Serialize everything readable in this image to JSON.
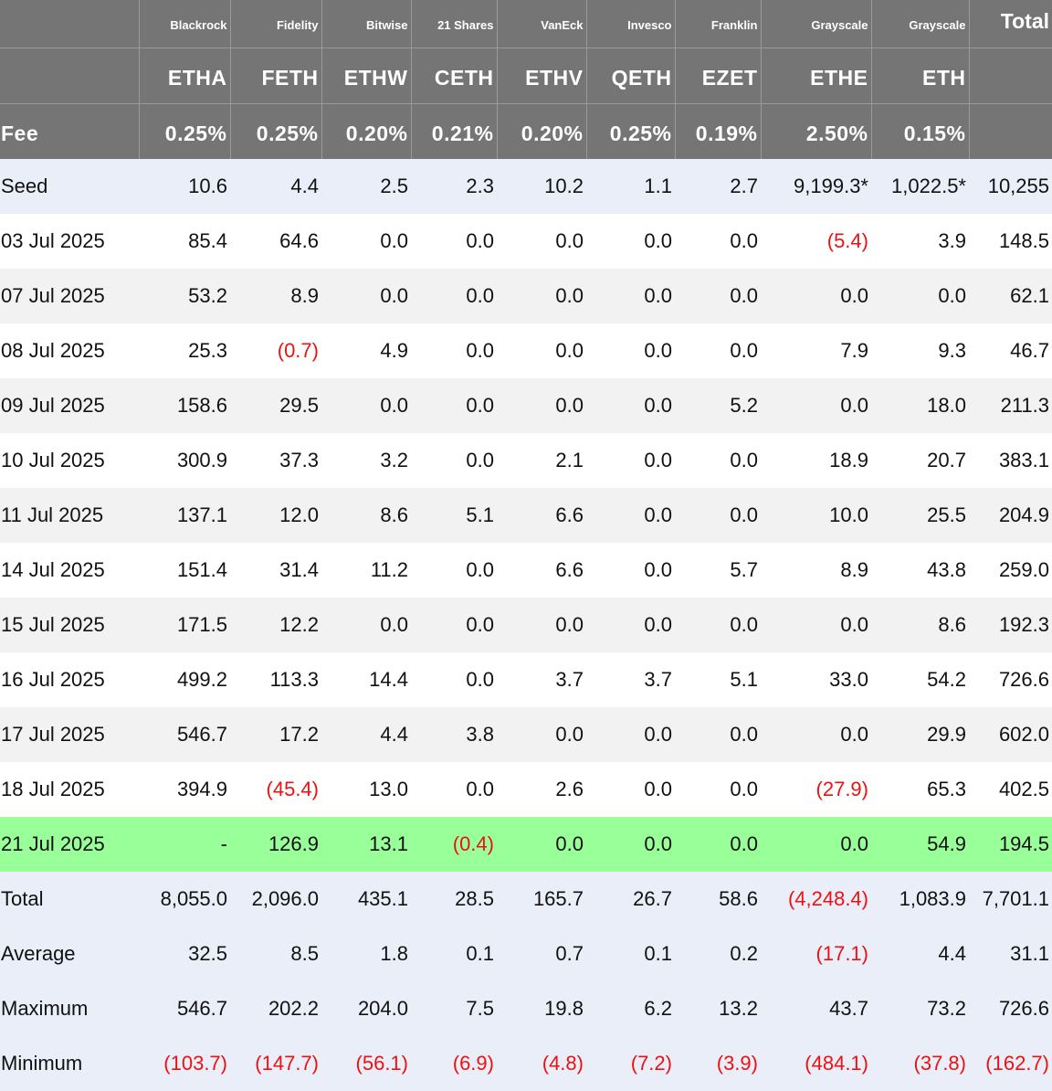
{
  "columns": [
    {
      "issuer": "Blackrock",
      "ticker": "ETHA",
      "fee": "0.25%"
    },
    {
      "issuer": "Fidelity",
      "ticker": "FETH",
      "fee": "0.25%"
    },
    {
      "issuer": "Bitwise",
      "ticker": "ETHW",
      "fee": "0.20%"
    },
    {
      "issuer": "21 Shares",
      "ticker": "CETH",
      "fee": "0.21%"
    },
    {
      "issuer": "VanEck",
      "ticker": "ETHV",
      "fee": "0.20%"
    },
    {
      "issuer": "Invesco",
      "ticker": "QETH",
      "fee": "0.25%"
    },
    {
      "issuer": "Franklin",
      "ticker": "EZET",
      "fee": "0.19%"
    },
    {
      "issuer": "Grayscale",
      "ticker": "ETHE",
      "fee": "2.50%"
    },
    {
      "issuer": "Grayscale",
      "ticker": "ETH",
      "fee": "0.15%"
    }
  ],
  "total_header": "Total",
  "fee_label": "Fee",
  "seed": {
    "label": "Seed",
    "cells": [
      "10.6",
      "4.4",
      "2.5",
      "2.3",
      "10.2",
      "1.1",
      "2.7",
      "9,199.3*",
      "1,022.5*",
      "10,255"
    ]
  },
  "rows": [
    {
      "date": "03 Jul 2025",
      "cells": [
        "85.4",
        "64.6",
        "0.0",
        "0.0",
        "0.0",
        "0.0",
        "0.0",
        "(5.4)",
        "3.9",
        "148.5"
      ]
    },
    {
      "date": "07 Jul 2025",
      "cells": [
        "53.2",
        "8.9",
        "0.0",
        "0.0",
        "0.0",
        "0.0",
        "0.0",
        "0.0",
        "0.0",
        "62.1"
      ]
    },
    {
      "date": "08 Jul 2025",
      "cells": [
        "25.3",
        "(0.7)",
        "4.9",
        "0.0",
        "0.0",
        "0.0",
        "0.0",
        "7.9",
        "9.3",
        "46.7"
      ]
    },
    {
      "date": "09 Jul 2025",
      "cells": [
        "158.6",
        "29.5",
        "0.0",
        "0.0",
        "0.0",
        "0.0",
        "5.2",
        "0.0",
        "18.0",
        "211.3"
      ]
    },
    {
      "date": "10 Jul 2025",
      "cells": [
        "300.9",
        "37.3",
        "3.2",
        "0.0",
        "2.1",
        "0.0",
        "0.0",
        "18.9",
        "20.7",
        "383.1"
      ]
    },
    {
      "date": "11 Jul 2025",
      "cells": [
        "137.1",
        "12.0",
        "8.6",
        "5.1",
        "6.6",
        "0.0",
        "0.0",
        "10.0",
        "25.5",
        "204.9"
      ]
    },
    {
      "date": "14 Jul 2025",
      "cells": [
        "151.4",
        "31.4",
        "11.2",
        "0.0",
        "6.6",
        "0.0",
        "5.7",
        "8.9",
        "43.8",
        "259.0"
      ]
    },
    {
      "date": "15 Jul 2025",
      "cells": [
        "171.5",
        "12.2",
        "0.0",
        "0.0",
        "0.0",
        "0.0",
        "0.0",
        "0.0",
        "8.6",
        "192.3"
      ]
    },
    {
      "date": "16 Jul 2025",
      "cells": [
        "499.2",
        "113.3",
        "14.4",
        "0.0",
        "3.7",
        "3.7",
        "5.1",
        "33.0",
        "54.2",
        "726.6"
      ]
    },
    {
      "date": "17 Jul 2025",
      "cells": [
        "546.7",
        "17.2",
        "4.4",
        "3.8",
        "0.0",
        "0.0",
        "0.0",
        "0.0",
        "29.9",
        "602.0"
      ]
    },
    {
      "date": "18 Jul 2025",
      "cells": [
        "394.9",
        "(45.4)",
        "13.0",
        "0.0",
        "2.6",
        "0.0",
        "0.0",
        "(27.9)",
        "65.3",
        "402.5"
      ]
    },
    {
      "date": "21 Jul 2025",
      "cells": [
        "-",
        "126.9",
        "13.1",
        "(0.4)",
        "0.0",
        "0.0",
        "0.0",
        "0.0",
        "54.9",
        "194.5"
      ],
      "highlight": "#99ff99"
    }
  ],
  "summary": [
    {
      "label": "Total",
      "cells": [
        "8,055.0",
        "2,096.0",
        "435.1",
        "28.5",
        "165.7",
        "26.7",
        "58.6",
        "(4,248.4)",
        "1,083.9",
        "7,701.1"
      ]
    },
    {
      "label": "Average",
      "cells": [
        "32.5",
        "8.5",
        "1.8",
        "0.1",
        "0.7",
        "0.1",
        "0.2",
        "(17.1)",
        "4.4",
        "31.1"
      ]
    },
    {
      "label": "Maximum",
      "cells": [
        "546.7",
        "202.2",
        "204.0",
        "7.5",
        "19.8",
        "6.2",
        "13.2",
        "43.7",
        "73.2",
        "726.6"
      ]
    },
    {
      "label": "Minimum",
      "cells": [
        "(103.7)",
        "(147.7)",
        "(56.1)",
        "(6.9)",
        "(4.8)",
        "(7.2)",
        "(3.9)",
        "(484.1)",
        "(37.8)",
        "(162.7)"
      ]
    }
  ],
  "colors": {
    "header_bg": "#757575",
    "seed_bg": "#e9eef9",
    "alt_row_bg": "#f2f2f2",
    "highlight_row_bg": "#99ff99",
    "negative_text": "#ee1111"
  }
}
